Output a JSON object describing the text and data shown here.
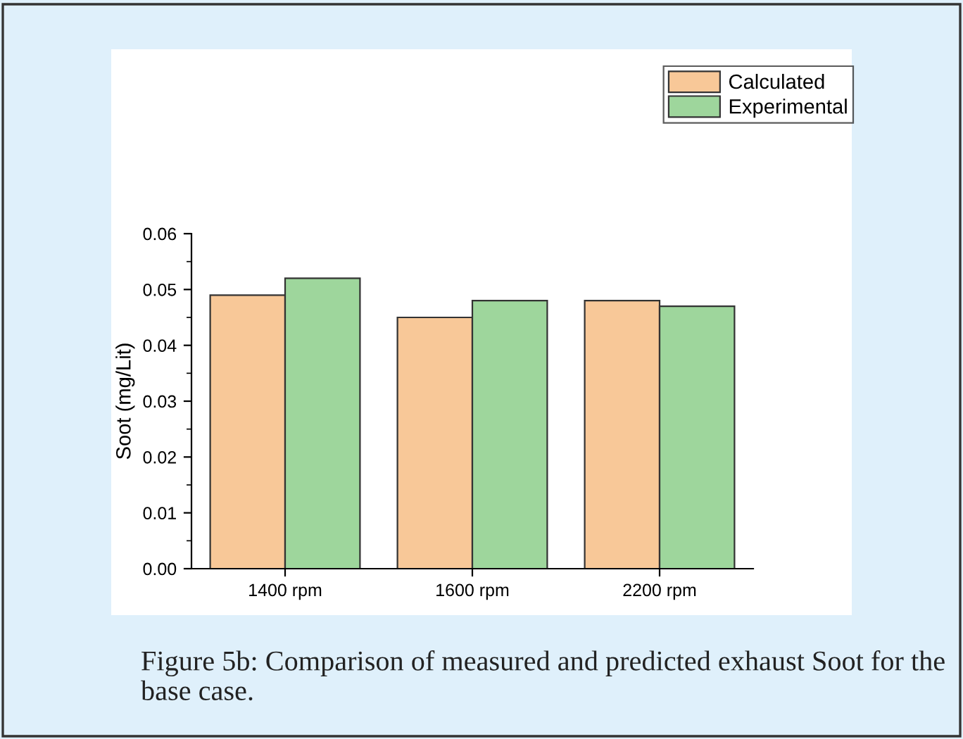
{
  "chart_data": {
    "type": "bar",
    "ylabel": "Soot (mg/Lit)",
    "categories": [
      "1400 rpm",
      "1600 rpm",
      "2200 rpm"
    ],
    "series": [
      {
        "name": "Calculated",
        "color": "#f8c898",
        "values": [
          0.049,
          0.045,
          0.048
        ]
      },
      {
        "name": "Experimental",
        "color": "#9ed69c",
        "values": [
          0.052,
          0.048,
          0.047
        ]
      }
    ],
    "ylim": [
      0,
      0.06
    ],
    "yticks": [
      {
        "value": 0,
        "label": "0.00"
      },
      0.01,
      0.02,
      0.03,
      0.04,
      0.05,
      0.06
    ],
    "grid": false,
    "legend": "top right",
    "annotations": [
      "Figure 5b: Comparison of measured and predicted exhaust Soot for the base case."
    ]
  }
}
